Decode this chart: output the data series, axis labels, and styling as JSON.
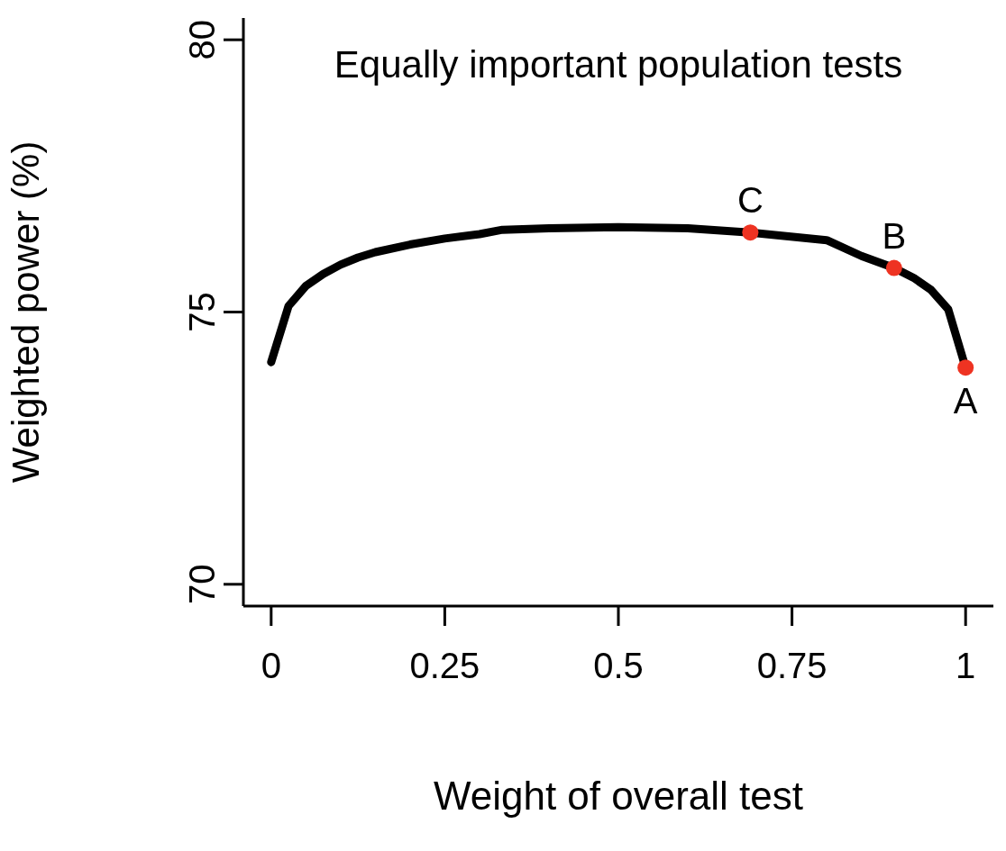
{
  "chart_data": {
    "type": "line",
    "title": "Equally important population tests",
    "xlabel": "Weight of overall test",
    "ylabel": "Weighted power (%)",
    "xlim": [
      -0.04,
      1.04
    ],
    "ylim": [
      69.6,
      80.4
    ],
    "xticks": [
      0,
      0.25,
      0.5,
      0.75,
      1
    ],
    "yticks": [
      70,
      75,
      80
    ],
    "grid": false,
    "legend": false,
    "series": [
      {
        "color": "#000000",
        "x": [
          0,
          0.025,
          0.05,
          0.075,
          0.1,
          0.125,
          0.15,
          0.2,
          0.25,
          0.3,
          0.333,
          0.4,
          0.5,
          0.6,
          0.69,
          0.8,
          0.85,
          0.897,
          0.925,
          0.95,
          0.975,
          1
        ],
        "values": [
          74.08,
          75.11,
          75.48,
          75.7,
          75.87,
          76.0,
          76.1,
          76.24,
          76.35,
          76.43,
          76.51,
          76.54,
          76.56,
          76.54,
          76.46,
          76.32,
          76.03,
          75.81,
          75.63,
          75.41,
          75.05,
          73.98
        ]
      },
      {
        "type": "scatter",
        "color": "#ee3322",
        "marker": "circle",
        "x": [
          0.69,
          0.897,
          1
        ],
        "values": [
          76.46,
          75.81,
          73.98
        ]
      }
    ],
    "annotations": [
      {
        "text": "C",
        "x": 0.69,
        "y": 76.46
      },
      {
        "text": "B",
        "x": 0.897,
        "y": 75.81
      },
      {
        "text": "A",
        "x": 1,
        "y": 73.98
      }
    ]
  }
}
